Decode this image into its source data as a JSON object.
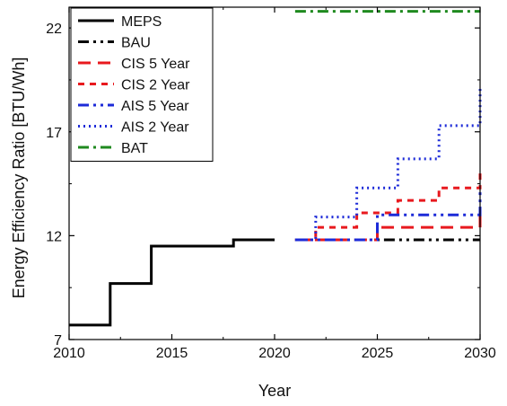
{
  "chart_data": {
    "type": "line",
    "title": "",
    "xlabel": "Year",
    "ylabel": "Energy Efficiency Ratio [BTU/Wh]",
    "xlim": [
      2010,
      2030
    ],
    "ylim": [
      7,
      23
    ],
    "x_ticks": [
      2010,
      2015,
      2020,
      2025,
      2030
    ],
    "y_ticks": [
      7,
      12,
      17,
      22
    ],
    "x_tick_labels": [
      "2010",
      "2015",
      "2020",
      "2025",
      "2030"
    ],
    "y_tick_labels": [
      "7",
      "12",
      "17",
      "22"
    ],
    "grid": false,
    "legend_position": "top-left",
    "series": [
      {
        "name": "MEPS",
        "color": "#000000",
        "dash": "solid",
        "x": [
          2010,
          2011,
          2012,
          2013,
          2014,
          2015,
          2016,
          2017,
          2018,
          2019,
          2020
        ],
        "y": [
          7.7,
          7.7,
          9.7,
          9.7,
          11.5,
          11.5,
          11.5,
          11.5,
          11.8,
          11.8,
          11.8
        ]
      },
      {
        "name": "BAU",
        "color": "#000000",
        "dash": "dash-dot-dot",
        "x": [
          2021,
          2022,
          2023,
          2024,
          2025,
          2026,
          2027,
          2028,
          2029,
          2030
        ],
        "y": [
          11.8,
          11.8,
          11.8,
          11.8,
          11.8,
          11.8,
          11.8,
          11.8,
          11.8,
          11.8
        ]
      },
      {
        "name": "CIS 5 Year",
        "color": "#e8191e",
        "dash": "long-dash",
        "x": [
          2021,
          2022,
          2023,
          2024,
          2025,
          2026,
          2027,
          2028,
          2029,
          2030
        ],
        "y": [
          11.8,
          11.8,
          11.8,
          11.8,
          12.4,
          12.4,
          12.4,
          12.4,
          12.4,
          13.3
        ]
      },
      {
        "name": "CIS 2 Year",
        "color": "#e8191e",
        "dash": "short-dash",
        "x": [
          2021,
          2022,
          2023,
          2024,
          2025,
          2026,
          2027,
          2028,
          2029,
          2030
        ],
        "y": [
          11.8,
          12.4,
          12.4,
          13.1,
          13.1,
          13.7,
          13.7,
          14.3,
          14.3,
          15.0
        ]
      },
      {
        "name": "AIS 5 Year",
        "color": "#1d2bd8",
        "dash": "dash-dot-dot",
        "x": [
          2021,
          2022,
          2023,
          2024,
          2025,
          2026,
          2027,
          2028,
          2029,
          2030
        ],
        "y": [
          11.8,
          11.8,
          11.8,
          11.8,
          13.0,
          13.0,
          13.0,
          13.0,
          13.0,
          14.3
        ]
      },
      {
        "name": "AIS 2 Year",
        "color": "#1d2bd8",
        "dash": "dotted",
        "x": [
          2021,
          2022,
          2023,
          2024,
          2025,
          2026,
          2027,
          2028,
          2029,
          2030
        ],
        "y": [
          11.8,
          12.9,
          12.9,
          14.3,
          14.3,
          15.7,
          15.7,
          17.3,
          17.3,
          19.1
        ]
      },
      {
        "name": "BAT",
        "color": "#1f8a1f",
        "dash": "dash-dot",
        "x": [
          2021,
          2022,
          2023,
          2024,
          2025,
          2026,
          2027,
          2028,
          2029,
          2030
        ],
        "y": [
          22.8,
          22.8,
          22.8,
          22.8,
          22.8,
          22.8,
          22.8,
          22.8,
          22.8,
          22.8
        ]
      }
    ]
  }
}
